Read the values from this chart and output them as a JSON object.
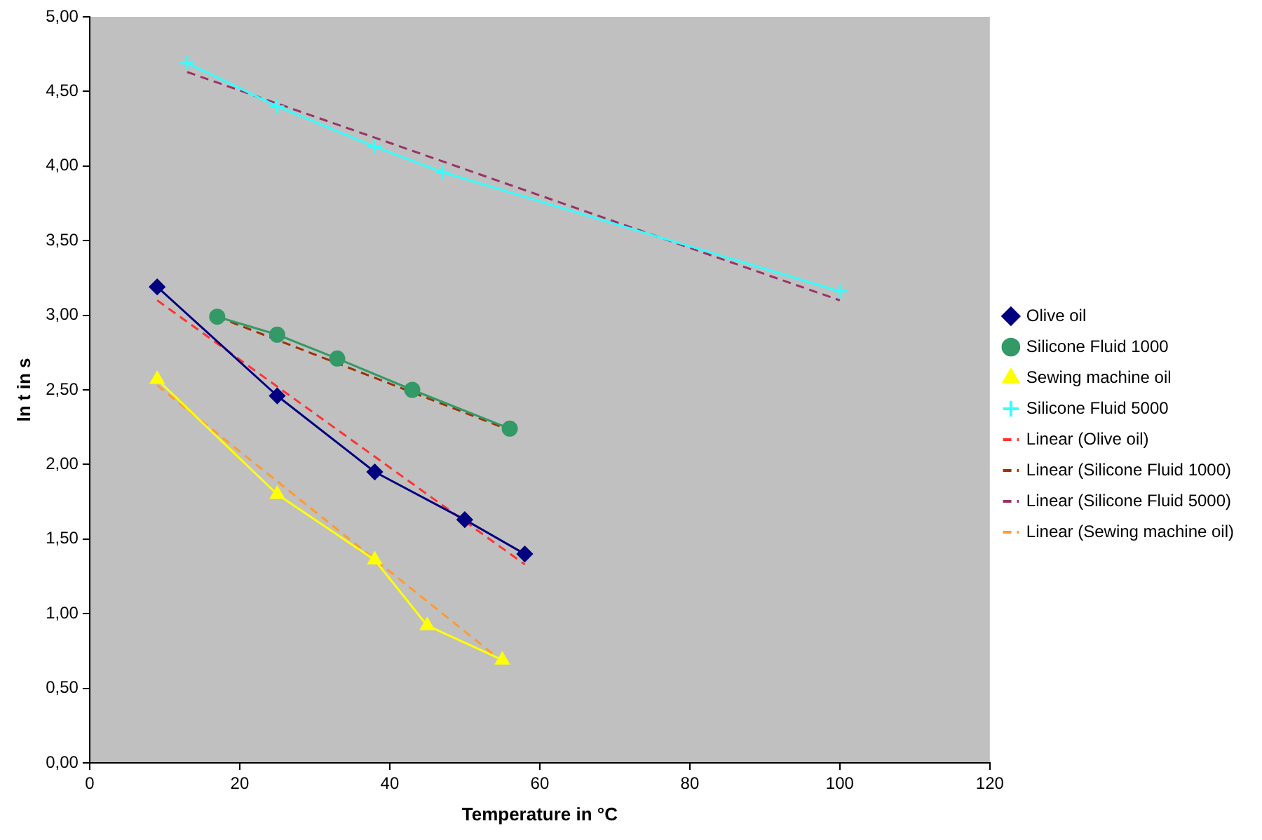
{
  "chart_data": {
    "type": "line",
    "xlabel": "Temperature in °C",
    "ylabel": "ln t in s",
    "xlim": [
      0,
      120
    ],
    "xticks": [
      0,
      20,
      40,
      60,
      80,
      100,
      120
    ],
    "ylim": [
      0,
      5
    ],
    "yticks": [
      {
        "value": 0,
        "label": "0,00"
      },
      {
        "value": 0.5,
        "label": "0,50"
      },
      {
        "value": 1,
        "label": "1,00"
      },
      {
        "value": 1.5,
        "label": "1,50"
      },
      {
        "value": 2,
        "label": "2,00"
      },
      {
        "value": 2.5,
        "label": "2,50"
      },
      {
        "value": 3,
        "label": "3,00"
      },
      {
        "value": 3.5,
        "label": "3,50"
      },
      {
        "value": 4,
        "label": "4,00"
      },
      {
        "value": 4.5,
        "label": "4,50"
      },
      {
        "value": 5,
        "label": "5,00"
      }
    ],
    "grid": false,
    "legend": "right",
    "series": [
      {
        "name": "Olive oil",
        "color": "#000080",
        "marker": "diamond",
        "line_style": "solid",
        "x": [
          9,
          25,
          38,
          50,
          58
        ],
        "values": [
          3.19,
          2.46,
          1.95,
          1.63,
          1.4
        ]
      },
      {
        "name": "Silicone Fluid 1000",
        "color": "#339966",
        "marker": "circle",
        "line_style": "solid",
        "x": [
          17,
          25,
          33,
          43,
          56
        ],
        "values": [
          2.99,
          2.87,
          2.71,
          2.5,
          2.24
        ]
      },
      {
        "name": "Sewing machine oil",
        "color": "#ffff00",
        "marker": "triangle",
        "line_style": "solid",
        "x": [
          9,
          25,
          38,
          45,
          55
        ],
        "values": [
          2.57,
          1.8,
          1.36,
          0.92,
          0.69
        ]
      },
      {
        "name": "Silicone Fluid 5000",
        "color": "#33ffff",
        "marker": "cross",
        "line_style": "solid",
        "x": [
          13,
          25,
          38,
          47,
          100
        ],
        "values": [
          4.69,
          4.4,
          4.13,
          3.96,
          3.16
        ]
      },
      {
        "name": "Linear (Olive oil)",
        "color": "#ff3333",
        "marker": "none",
        "line_style": "dashed",
        "x": [
          9,
          58
        ],
        "values": [
          3.1,
          1.33
        ]
      },
      {
        "name": "Linear (Silicone Fluid 1000)",
        "color": "#993300",
        "marker": "none",
        "line_style": "dashed",
        "x": [
          17,
          56
        ],
        "values": [
          2.99,
          2.23
        ]
      },
      {
        "name": "Linear (Silicone Fluid 5000)",
        "color": "#993366",
        "marker": "none",
        "line_style": "dashed",
        "x": [
          13,
          100
        ],
        "values": [
          4.63,
          3.1
        ]
      },
      {
        "name": "Linear (Sewing machine oil)",
        "color": "#ff9933",
        "marker": "none",
        "line_style": "dashed",
        "x": [
          9,
          55
        ],
        "values": [
          2.53,
          0.68
        ]
      }
    ]
  }
}
